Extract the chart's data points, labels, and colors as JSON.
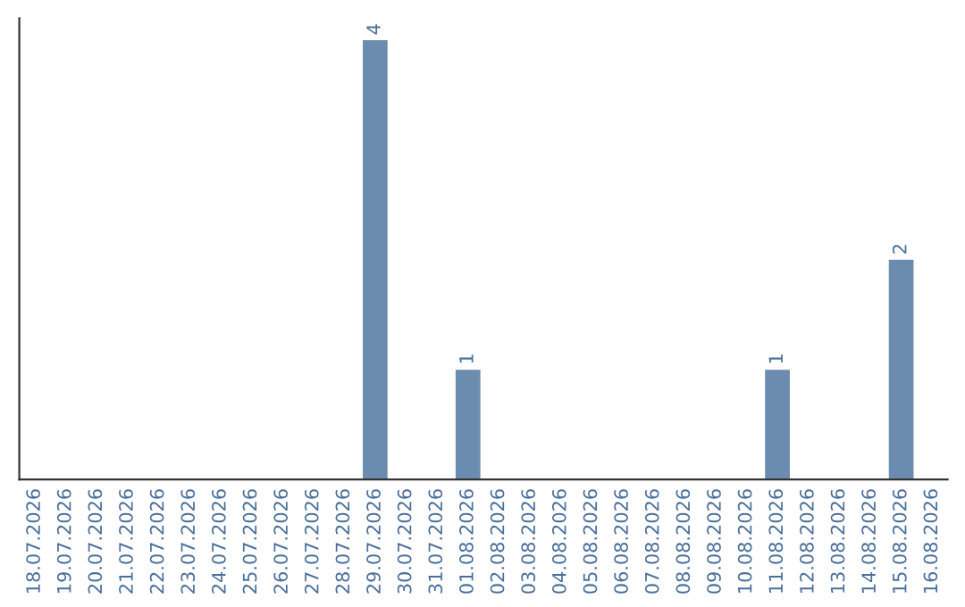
{
  "chart_data": {
    "type": "bar",
    "categories": [
      "18.07.2026",
      "19.07.2026",
      "20.07.2026",
      "21.07.2026",
      "22.07.2026",
      "23.07.2026",
      "24.07.2026",
      "25.07.2026",
      "26.07.2026",
      "27.07.2026",
      "28.07.2026",
      "29.07.2026",
      "30.07.2026",
      "31.07.2026",
      "01.08.2026",
      "02.08.2026",
      "03.08.2026",
      "04.08.2026",
      "05.08.2026",
      "06.08.2026",
      "07.08.2026",
      "08.08.2026",
      "09.08.2026",
      "10.08.2026",
      "11.08.2026",
      "12.08.2026",
      "13.08.2026",
      "14.08.2026",
      "15.08.2026",
      "16.08.2026"
    ],
    "values": [
      0,
      0,
      0,
      0,
      0,
      0,
      0,
      0,
      0,
      0,
      0,
      4,
      0,
      0,
      1,
      0,
      0,
      0,
      0,
      0,
      0,
      0,
      0,
      0,
      1,
      0,
      0,
      0,
      2,
      0
    ],
    "value_labels": [
      null,
      null,
      null,
      null,
      null,
      null,
      null,
      null,
      null,
      null,
      null,
      "4",
      null,
      null,
      "1",
      null,
      null,
      null,
      null,
      null,
      null,
      null,
      null,
      null,
      "1",
      null,
      null,
      null,
      "2",
      null
    ],
    "color": "#6b8cae",
    "tick_labels": "x"
  }
}
